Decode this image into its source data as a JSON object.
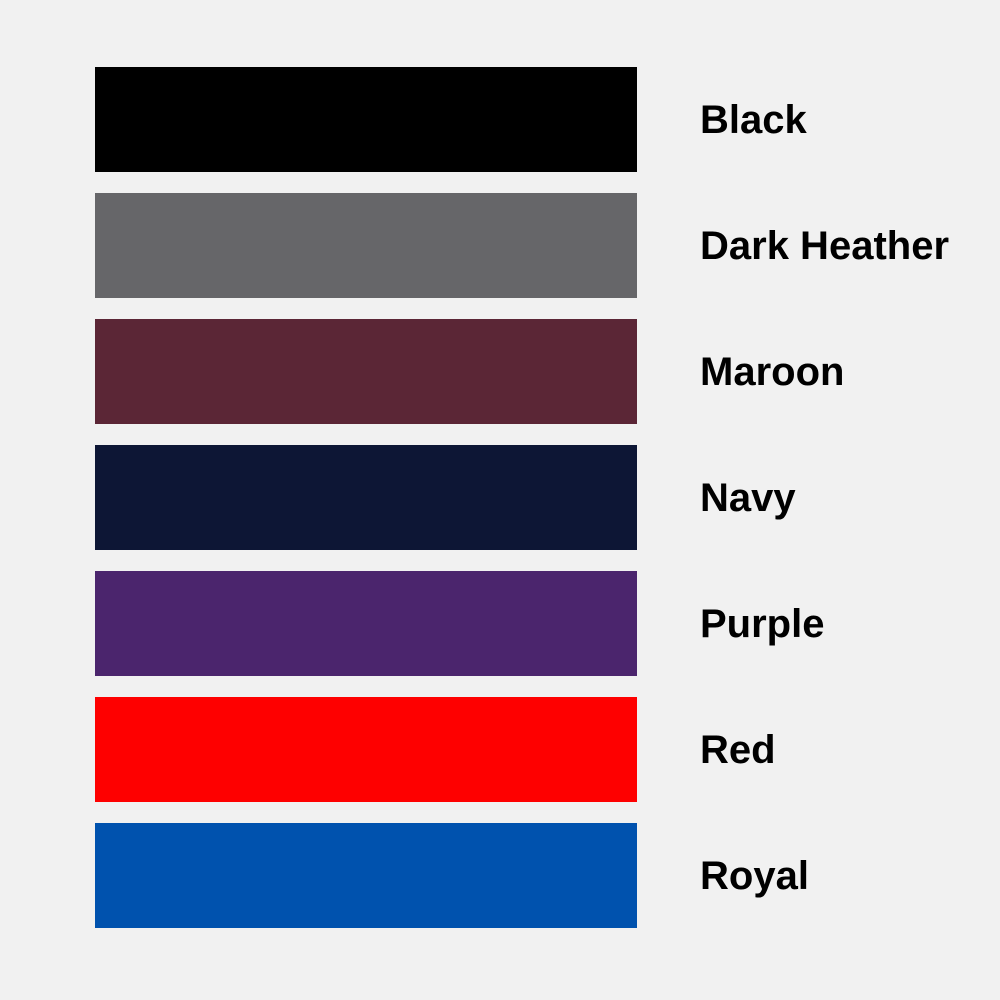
{
  "page": {
    "background": "#f1f1f1",
    "label_text_color": "#000000"
  },
  "swatches": [
    {
      "name": "Black",
      "color": "#000000"
    },
    {
      "name": "Dark Heather",
      "color": "#666669"
    },
    {
      "name": "Maroon",
      "color": "#5b2636"
    },
    {
      "name": "Navy",
      "color": "#0d1635"
    },
    {
      "name": "Purple",
      "color": "#4b256d"
    },
    {
      "name": "Red",
      "color": "#fe0000"
    },
    {
      "name": "Royal",
      "color": "#0052ae"
    }
  ]
}
